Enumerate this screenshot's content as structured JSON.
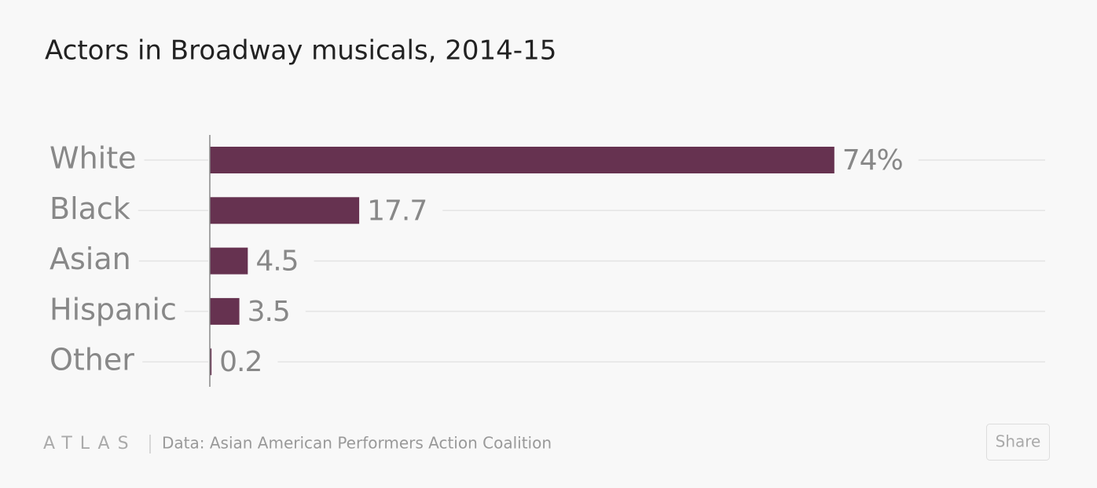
{
  "chart_data": {
    "type": "bar",
    "orientation": "horizontal",
    "title": "Actors in Broadway musicals, 2014-15",
    "categories": [
      "White",
      "Black",
      "Asian",
      "Hispanic",
      "Other"
    ],
    "values": [
      74,
      17.7,
      4.5,
      3.5,
      0.2
    ],
    "value_labels": [
      "74%",
      "17.7",
      "4.5",
      "3.5",
      "0.2"
    ],
    "color": "#663250",
    "xlim": [
      0,
      100
    ],
    "brand": "ATLAS",
    "source": "Data:  Asian American Performers Action Coalition",
    "share": "Share"
  }
}
